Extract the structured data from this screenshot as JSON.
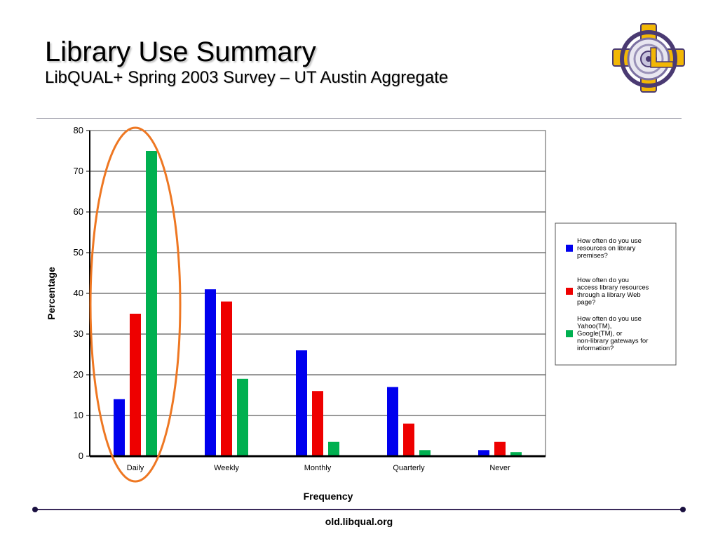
{
  "slide": {
    "title": "Library Use Summary",
    "subtitle": "LibQUAL+ Spring 2003 Survey – UT Austin Aggregate",
    "footer": "old.libqual.org"
  },
  "colors": {
    "series": [
      "#0000ee",
      "#ee0000",
      "#00b050"
    ],
    "highlight": "#ee7722",
    "logo_gold": "#f2b705",
    "logo_purple": "#4a3a72"
  },
  "chart_data": {
    "type": "bar",
    "categories": [
      "Daily",
      "Weekly",
      "Monthly",
      "Quarterly",
      "Never"
    ],
    "series": [
      {
        "name": "How often do you use resources on library premises?",
        "values": [
          14,
          41,
          26,
          17,
          1.5
        ]
      },
      {
        "name": "How often do you access library resources through a library Web page?",
        "values": [
          35,
          38,
          16,
          8,
          3.5
        ]
      },
      {
        "name": "How often do you use Yahoo(TM), Google(TM), or non-library gateways for information?",
        "values": [
          75,
          19,
          3.5,
          1.5,
          1
        ]
      }
    ],
    "legend_lines": [
      [
        "How often do you use",
        "resources on library",
        "premises?"
      ],
      [
        "How often do you",
        "access library resources",
        "through a library Web",
        "page?"
      ],
      [
        "How often do you use",
        "Yahoo(TM),",
        "Google(TM), or",
        "non-library gateways for",
        "information?"
      ]
    ],
    "xlabel": "Frequency",
    "ylabel": "Percentage",
    "ylim": [
      0,
      80
    ],
    "yticks": [
      0,
      10,
      20,
      30,
      40,
      50,
      60,
      70,
      80
    ],
    "grid": true,
    "legend_position": "right",
    "highlighted_category": "Daily"
  }
}
